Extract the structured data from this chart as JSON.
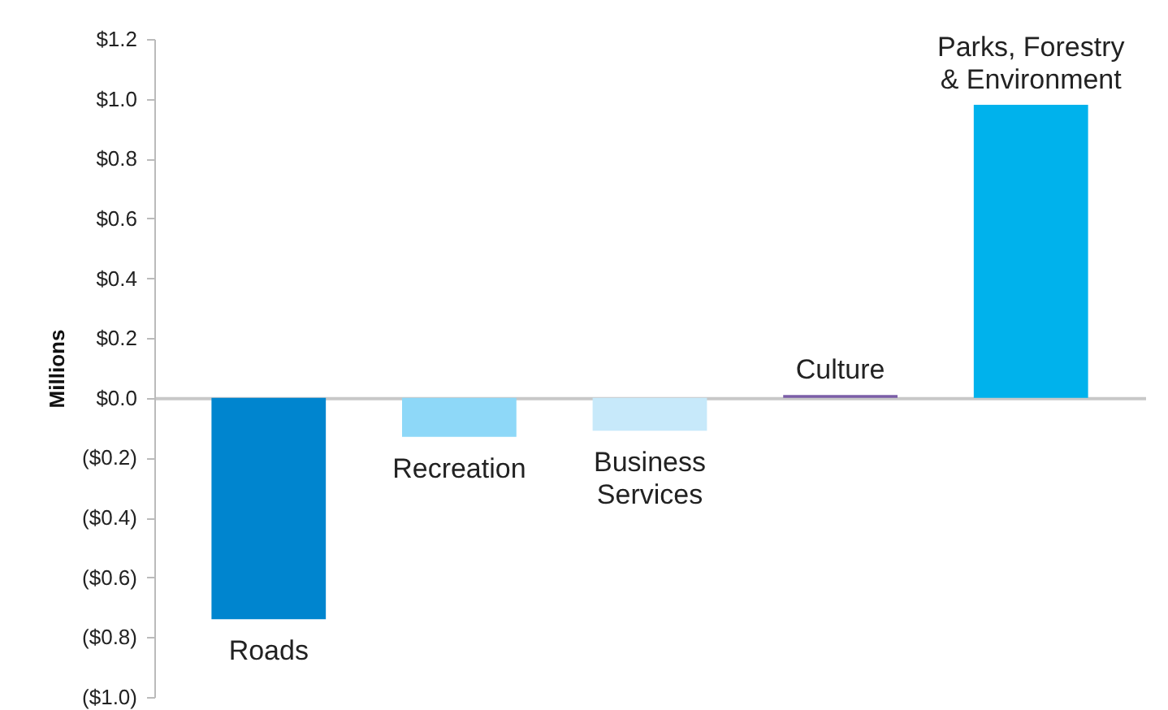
{
  "chart_data": {
    "type": "bar",
    "ylabel": "Millions",
    "categories": [
      "Roads",
      "Recreation",
      "Business\nServices",
      "Culture",
      "Parks, Forestry\n& Environment"
    ],
    "values": [
      -0.74,
      -0.13,
      -0.11,
      0.01,
      0.98
    ],
    "colors": [
      "#0085cf",
      "#8ed8f8",
      "#c7e9fa",
      "#7b5ea7",
      "#00b2ec"
    ],
    "ylim": [
      -1.0,
      1.2
    ],
    "yticks": [
      {
        "value": 1.2,
        "label": "$1.2"
      },
      {
        "value": 1.0,
        "label": "$1.0"
      },
      {
        "value": 0.8,
        "label": "$0.8"
      },
      {
        "value": 0.6,
        "label": "$0.6"
      },
      {
        "value": 0.4,
        "label": "$0.4"
      },
      {
        "value": 0.2,
        "label": "$0.2"
      },
      {
        "value": 0.0,
        "label": "$0.0"
      },
      {
        "value": -0.2,
        "label": "($0.2)"
      },
      {
        "value": -0.4,
        "label": "($0.4)"
      },
      {
        "value": -0.6,
        "label": "($0.6)"
      },
      {
        "value": -0.8,
        "label": "($0.8)"
      },
      {
        "value": -1.0,
        "label": "($1.0)"
      }
    ],
    "grid": false
  }
}
